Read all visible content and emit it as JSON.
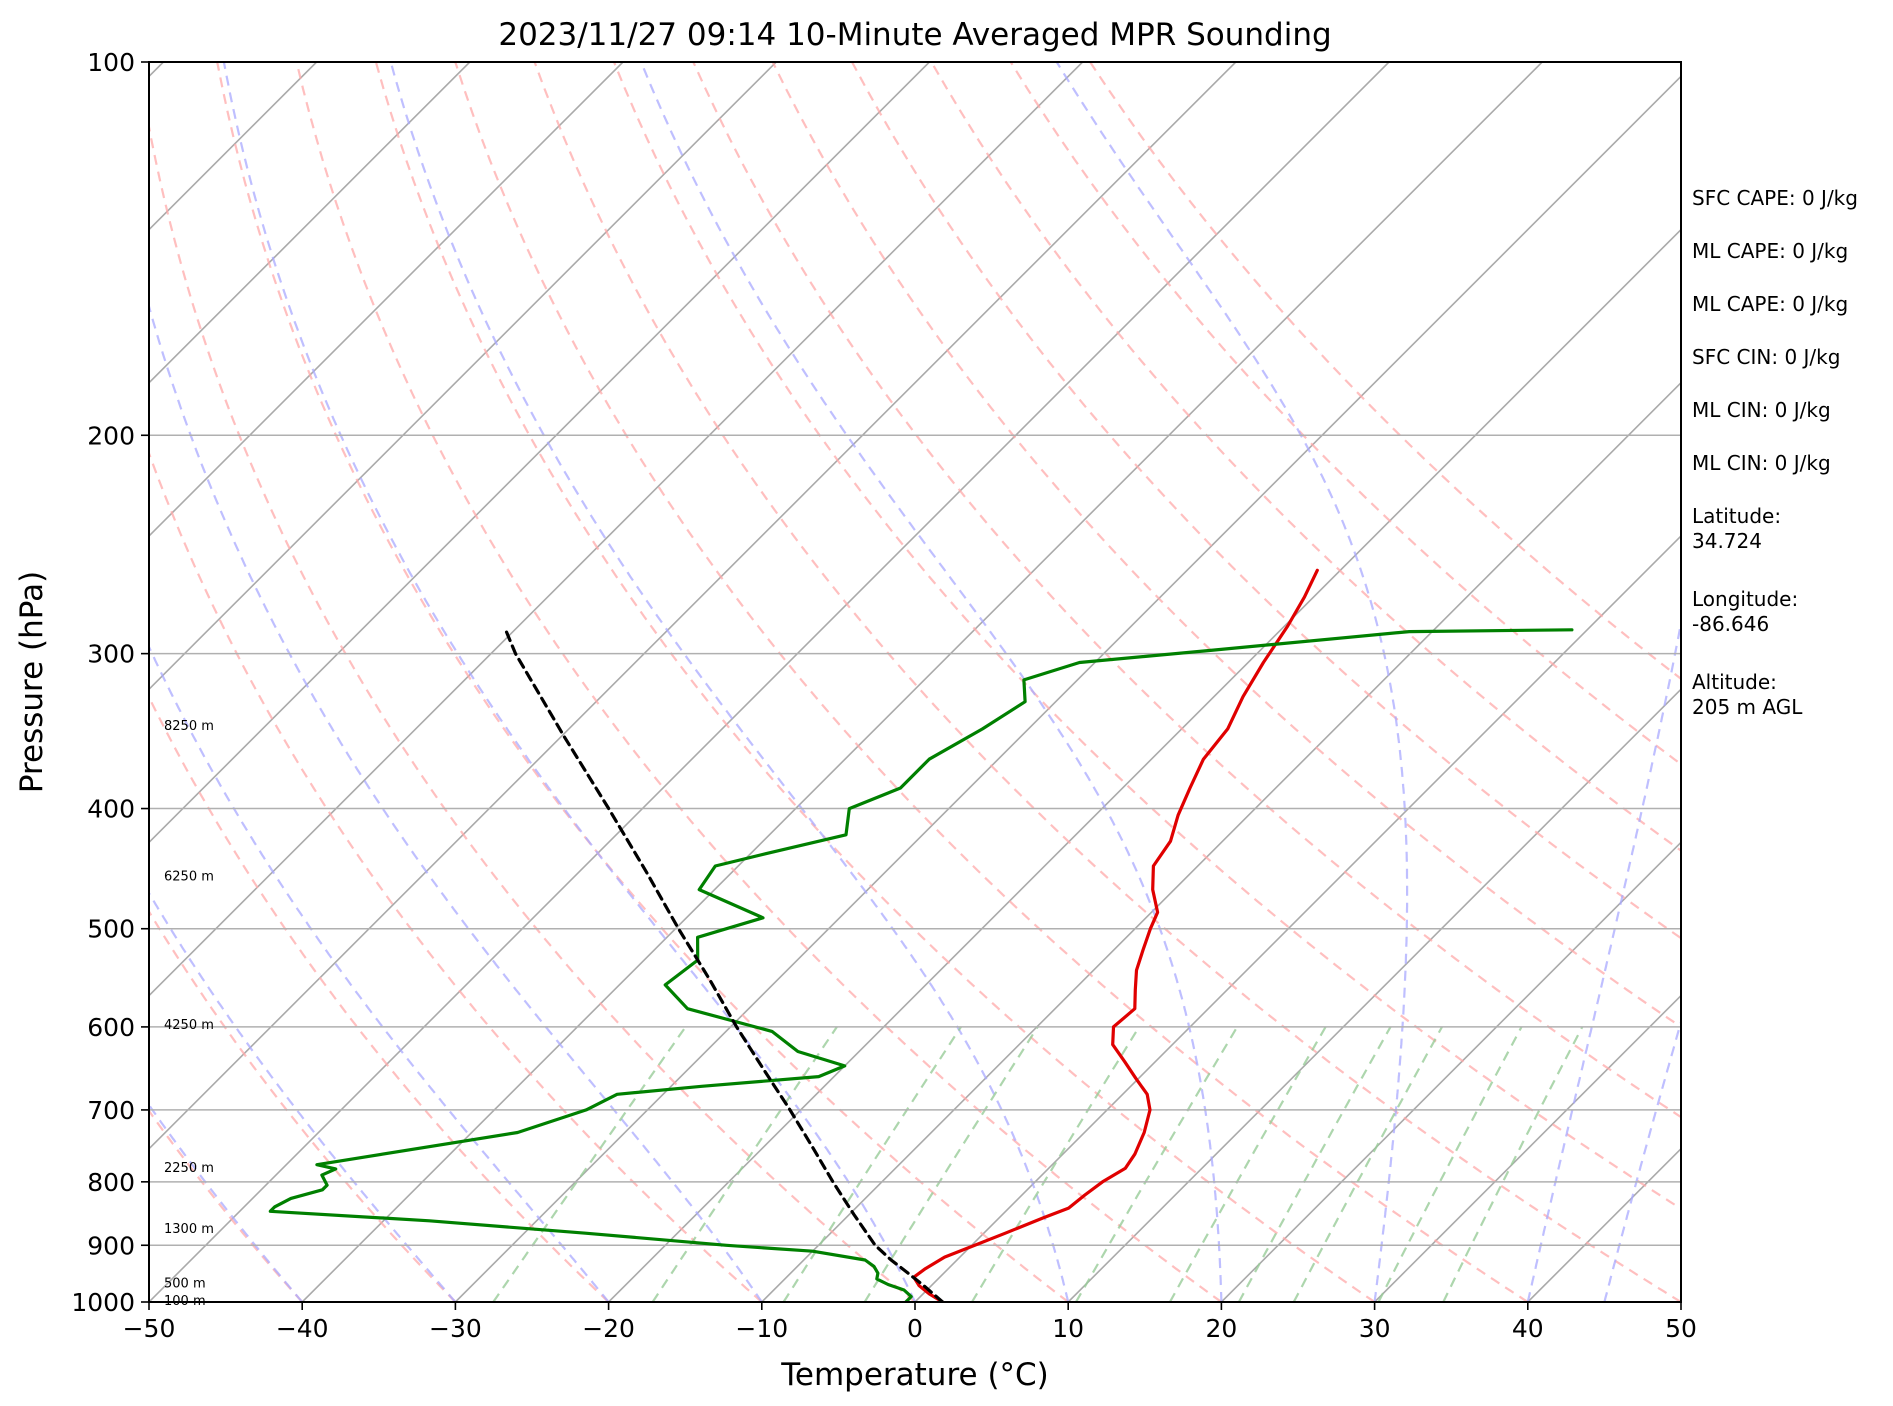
{
  "chart_data": {
    "type": "line",
    "subtype": "skew-t log-p sounding",
    "title": "2023/11/27 09:14 10-Minute Averaged MPR Sounding",
    "xlabel": "Temperature (°C)",
    "ylabel": "Pressure (hPa)",
    "xlim": [
      -50,
      50
    ],
    "ylim": [
      1000,
      100
    ],
    "y_scale": "log",
    "x_ticks": [
      -50,
      -40,
      -30,
      -20,
      -10,
      0,
      10,
      20,
      30,
      40,
      50
    ],
    "x_tick_labels": [
      "−50",
      "−40",
      "−30",
      "−20",
      "−10",
      "0",
      "10",
      "20",
      "30",
      "40",
      "50"
    ],
    "y_ticks": [
      100,
      200,
      300,
      400,
      500,
      600,
      700,
      800,
      900,
      1000
    ],
    "y_tick_labels": [
      "100",
      "200",
      "300",
      "400",
      "500",
      "600",
      "700",
      "800",
      "900",
      "1000"
    ],
    "grid": true,
    "series": [
      {
        "role": "temperature",
        "color": "#e00000",
        "points": [
          [
            1000,
            1.8
          ],
          [
            985,
            0.4
          ],
          [
            970,
            -0.8
          ],
          [
            955,
            -1.7
          ],
          [
            940,
            -1.5
          ],
          [
            920,
            -1.0
          ],
          [
            900,
            0.2
          ],
          [
            880,
            1.4
          ],
          [
            855,
            2.9
          ],
          [
            840,
            3.9
          ],
          [
            820,
            4.1
          ],
          [
            800,
            4.4
          ],
          [
            780,
            5.0
          ],
          [
            760,
            4.7
          ],
          [
            730,
            3.9
          ],
          [
            700,
            2.8
          ],
          [
            680,
            1.6
          ],
          [
            660,
            -0.2
          ],
          [
            640,
            -2.0
          ],
          [
            620,
            -3.9
          ],
          [
            600,
            -5.0
          ],
          [
            580,
            -4.8
          ],
          [
            560,
            -6.0
          ],
          [
            540,
            -7.2
          ],
          [
            520,
            -8.1
          ],
          [
            500,
            -9.0
          ],
          [
            485,
            -9.6
          ],
          [
            465,
            -11.4
          ],
          [
            445,
            -12.9
          ],
          [
            425,
            -13.4
          ],
          [
            405,
            -14.6
          ],
          [
            385,
            -15.6
          ],
          [
            365,
            -16.6
          ],
          [
            345,
            -17.0
          ],
          [
            325,
            -18.1
          ],
          [
            305,
            -19.0
          ],
          [
            285,
            -19.8
          ],
          [
            270,
            -20.6
          ],
          [
            257,
            -21.5
          ]
        ]
      },
      {
        "role": "dewpoint",
        "color": "#008000",
        "points": [
          [
            1000,
            -0.6
          ],
          [
            990,
            -0.6
          ],
          [
            978,
            -1.5
          ],
          [
            968,
            -2.9
          ],
          [
            958,
            -4.0
          ],
          [
            948,
            -4.3
          ],
          [
            936,
            -5.0
          ],
          [
            925,
            -6.0
          ],
          [
            910,
            -10.0
          ],
          [
            900,
            -16.0
          ],
          [
            880,
            -26.0
          ],
          [
            860,
            -37.0
          ],
          [
            845,
            -48.0
          ],
          [
            838,
            -48.0
          ],
          [
            825,
            -47.5
          ],
          [
            812,
            -46.0
          ],
          [
            805,
            -46.0
          ],
          [
            790,
            -47.0
          ],
          [
            781,
            -46.5
          ],
          [
            775,
            -48.0
          ],
          [
            730,
            -37.0
          ],
          [
            700,
            -34.0
          ],
          [
            680,
            -33.0
          ],
          [
            670,
            -28.0
          ],
          [
            658,
            -21.0
          ],
          [
            645,
            -20.0
          ],
          [
            628,
            -24.0
          ],
          [
            605,
            -27.0
          ],
          [
            580,
            -34.0
          ],
          [
            555,
            -37.0
          ],
          [
            530,
            -36.5
          ],
          [
            508,
            -38.0
          ],
          [
            490,
            -35.0
          ],
          [
            465,
            -41.0
          ],
          [
            445,
            -41.5
          ],
          [
            435,
            -39.0
          ],
          [
            420,
            -35.0
          ],
          [
            400,
            -36.5
          ],
          [
            385,
            -34.5
          ],
          [
            365,
            -34.5
          ],
          [
            345,
            -33.0
          ],
          [
            328,
            -32.0
          ],
          [
            315,
            -33.5
          ],
          [
            305,
            -31.0
          ],
          [
            298,
            -23.0
          ],
          [
            288,
            -11.5
          ],
          [
            287,
            -1.0
          ]
        ]
      },
      {
        "role": "parcel",
        "color": "#000000",
        "style": "dashed",
        "points": [
          [
            1000,
            1.8
          ],
          [
            970,
            -0.5
          ],
          [
            940,
            -3.0
          ],
          [
            925,
            -4.3
          ],
          [
            900,
            -6.3
          ],
          [
            850,
            -9.7
          ],
          [
            800,
            -13.2
          ],
          [
            750,
            -16.8
          ],
          [
            700,
            -20.7
          ],
          [
            650,
            -25.0
          ],
          [
            600,
            -29.6
          ],
          [
            550,
            -34.4
          ],
          [
            500,
            -39.8
          ],
          [
            450,
            -45.6
          ],
          [
            400,
            -52.2
          ],
          [
            350,
            -59.8
          ],
          [
            300,
            -68.4
          ],
          [
            287,
            -70.6
          ]
        ]
      }
    ],
    "height_labels": [
      "8250 m",
      "6250 m",
      "4250 m",
      "2250 m",
      "1300 m",
      "500 m",
      "100 m"
    ],
    "height_label_pressures": [
      343,
      454,
      598,
      780,
      873,
      966,
      998
    ],
    "dry_adiabat_surface_temps": [
      -50,
      -40,
      -30,
      -20,
      -10,
      0,
      10,
      20,
      30,
      40,
      50,
      60,
      70,
      80,
      90,
      100,
      110,
      120
    ],
    "moist_adiabat_surface_temps": [
      -40,
      -30,
      -20,
      -10,
      0,
      10,
      20,
      30,
      40,
      45,
      50,
      55
    ],
    "mixing_ratio_lines_gkg": [
      0.4,
      1,
      2,
      3,
      5,
      8,
      12,
      16,
      20,
      28,
      36
    ]
  },
  "side_panel": {
    "items": [
      "SFC CAPE: 0 J/kg",
      "ML CAPE: 0 J/kg",
      "ML CAPE: 0 J/kg",
      "SFC CIN: 0 J/kg",
      "ML CIN: 0 J/kg",
      "ML CIN: 0 J/kg",
      "Latitude:\n34.724",
      "Longitude:\n-86.646",
      "Altitude:\n205 m AGL"
    ]
  },
  "colors": {
    "temperature": "#e00000",
    "dewpoint": "#008000",
    "parcel": "#000000",
    "isotherm": "#aaaaaa",
    "dry_adiabat": "#ffaaaa",
    "moist_adiabat": "#aaaaff",
    "mixing_ratio": "#99cc99",
    "grid": "#b0b0b0"
  }
}
